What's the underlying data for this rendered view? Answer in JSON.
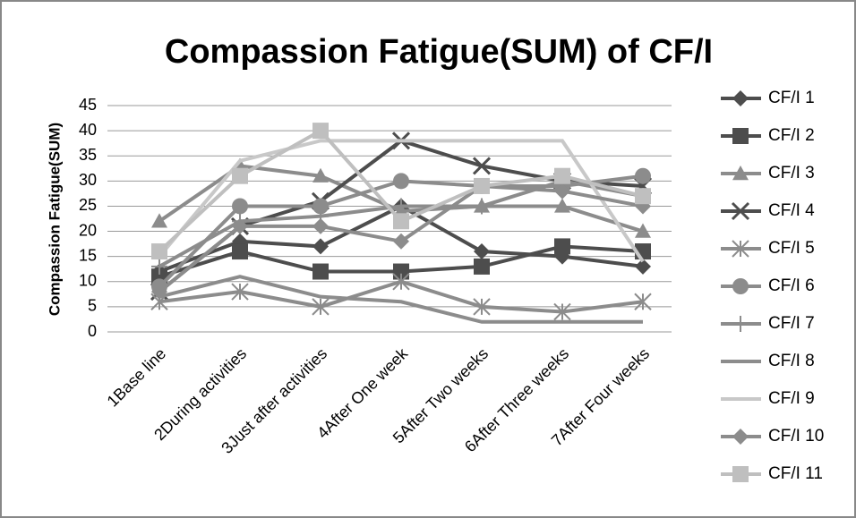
{
  "chart_data": {
    "type": "line",
    "title": "Compassion Fatigue(SUM) of CF/I",
    "y_label": "Compassion Fatigue(SUM)",
    "categories": [
      "1Base line",
      "2During activities",
      "3Just after activities",
      "4After One week",
      "5After Two weeks",
      "6After Three weeks",
      "7After Four weeks"
    ],
    "ylim": [
      0,
      45
    ],
    "yticks": [
      0,
      5,
      10,
      15,
      20,
      25,
      30,
      35,
      40,
      45
    ],
    "grid": true,
    "legend": "right",
    "series": [
      {
        "name": "CF/I 1",
        "color": "#4d4d4d",
        "marker": "diamond",
        "values": [
          12,
          18,
          17,
          25,
          16,
          15,
          13
        ]
      },
      {
        "name": "CF/I 2",
        "color": "#4d4d4d",
        "marker": "square",
        "values": [
          11,
          16,
          12,
          12,
          13,
          17,
          16
        ]
      },
      {
        "name": "CF/I 3",
        "color": "#8c8c8c",
        "marker": "triangle",
        "values": [
          22,
          33,
          31,
          24,
          25,
          25,
          20
        ]
      },
      {
        "name": "CF/I 4",
        "color": "#4d4d4d",
        "marker": "x",
        "values": [
          8,
          21,
          26,
          38,
          33,
          30,
          29
        ]
      },
      {
        "name": "CF/I 5",
        "color": "#8c8c8c",
        "marker": "asterisk",
        "values": [
          6,
          8,
          5,
          10,
          5,
          4,
          6
        ]
      },
      {
        "name": "CF/I 6",
        "color": "#8c8c8c",
        "marker": "circle",
        "values": [
          9,
          25,
          25,
          30,
          29,
          29,
          31
        ]
      },
      {
        "name": "CF/I 7",
        "color": "#8c8c8c",
        "marker": "plus",
        "values": [
          13,
          22,
          23,
          25,
          25,
          30,
          27
        ]
      },
      {
        "name": "CF/I 8",
        "color": "#8c8c8c",
        "marker": "none",
        "values": [
          7,
          11,
          7,
          6,
          2,
          2,
          2
        ]
      },
      {
        "name": "CF/I 9",
        "color": "#c8c8c8",
        "marker": "none",
        "values": [
          15,
          34,
          38,
          38,
          38,
          38,
          14
        ]
      },
      {
        "name": "CF/I 10",
        "color": "#8c8c8c",
        "marker": "diamond",
        "values": [
          8,
          21,
          21,
          18,
          29,
          28,
          25
        ]
      },
      {
        "name": "CF/I 11",
        "color": "#bfbfbf",
        "marker": "square",
        "values": [
          16,
          31,
          40,
          22,
          29,
          31,
          27
        ]
      }
    ]
  }
}
